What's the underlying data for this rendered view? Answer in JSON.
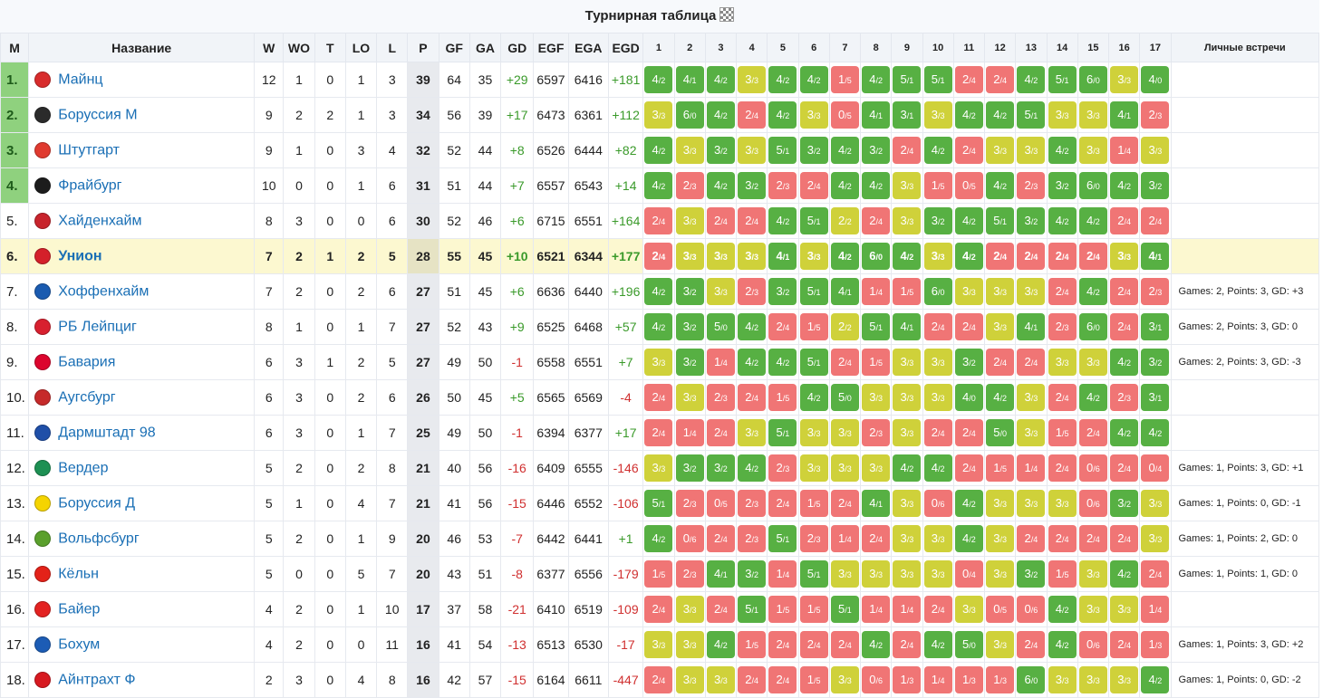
{
  "title": "Турнирная таблица",
  "headers": [
    "M",
    "Название",
    "W",
    "WO",
    "T",
    "LO",
    "L",
    "P",
    "GF",
    "GA",
    "GD",
    "EGF",
    "EGA",
    "EGD",
    "1",
    "2",
    "3",
    "4",
    "5",
    "6",
    "7",
    "8",
    "9",
    "10",
    "11",
    "12",
    "13",
    "14",
    "15",
    "16",
    "17",
    "Личные встречи"
  ],
  "colors": {
    "win": "#57b043",
    "loss": "#f07575",
    "draw": "#cfd13a",
    "qualified": "#8fd17e",
    "highlight": "#fcf8d0"
  },
  "rows": [
    {
      "pos": "1.",
      "name": "Майнц",
      "logo_color": "#d82c2c",
      "qualified": true,
      "highlight": false,
      "w": "12",
      "wo": "1",
      "t": "0",
      "lo": "1",
      "l": "3",
      "p": "39",
      "gf": "64",
      "ga": "35",
      "gd": "+29",
      "egf": "6597",
      "ega": "6416",
      "egd": "+181",
      "h2h": "",
      "m": [
        "4/2",
        "4/1",
        "4/2",
        "3/3",
        "4/2",
        "4/2",
        "1/5",
        "4/2",
        "5/1",
        "5/1",
        "2/4",
        "2/4",
        "4/2",
        "5/1",
        "6/0",
        "3/3",
        "4/0"
      ]
    },
    {
      "pos": "2.",
      "name": "Боруссия М",
      "logo_color": "#2b2b2b",
      "qualified": true,
      "highlight": false,
      "w": "9",
      "wo": "2",
      "t": "2",
      "lo": "1",
      "l": "3",
      "p": "34",
      "gf": "56",
      "ga": "39",
      "gd": "+17",
      "egf": "6473",
      "ega": "6361",
      "egd": "+112",
      "h2h": "",
      "m": [
        "3/3",
        "6/0",
        "4/2",
        "2/4",
        "4/2",
        "3/3",
        "0/5",
        "4/1",
        "3/1",
        "3/3",
        "4/2",
        "4/2",
        "5/1",
        "3/3",
        "3/3",
        "4/1",
        "2/3"
      ]
    },
    {
      "pos": "3.",
      "name": "Штутгарт",
      "logo_color": "#e03a2f",
      "qualified": true,
      "highlight": false,
      "w": "9",
      "wo": "1",
      "t": "0",
      "lo": "3",
      "l": "4",
      "p": "32",
      "gf": "52",
      "ga": "44",
      "gd": "+8",
      "egf": "6526",
      "ega": "6444",
      "egd": "+82",
      "h2h": "",
      "m": [
        "4/2",
        "3/3",
        "3/2",
        "3/3",
        "5/1",
        "3/2",
        "4/2",
        "3/2",
        "2/4",
        "4/2",
        "2/4",
        "3/3",
        "3/3",
        "4/2",
        "3/3",
        "1/4",
        "3/3"
      ]
    },
    {
      "pos": "4.",
      "name": "Фрайбург",
      "logo_color": "#1c1c1c",
      "qualified": true,
      "highlight": false,
      "w": "10",
      "wo": "0",
      "t": "0",
      "lo": "1",
      "l": "6",
      "p": "31",
      "gf": "51",
      "ga": "44",
      "gd": "+7",
      "egf": "6557",
      "ega": "6543",
      "egd": "+14",
      "h2h": "",
      "m": [
        "4/2",
        "2/3",
        "4/2",
        "3/2",
        "2/3",
        "2/4",
        "4/2",
        "4/2",
        "3/3",
        "1/5",
        "0/5",
        "4/2",
        "2/3",
        "3/2",
        "6/0",
        "4/2",
        "3/2"
      ]
    },
    {
      "pos": "5.",
      "name": "Хайденхайм",
      "logo_color": "#c8242c",
      "qualified": false,
      "highlight": false,
      "w": "8",
      "wo": "3",
      "t": "0",
      "lo": "0",
      "l": "6",
      "p": "30",
      "gf": "52",
      "ga": "46",
      "gd": "+6",
      "egf": "6715",
      "ega": "6551",
      "egd": "+164",
      "h2h": "",
      "m": [
        "2/4",
        "3/3",
        "2/4",
        "2/4",
        "4/2",
        "5/1",
        "2/2",
        "2/4",
        "3/3",
        "3/2",
        "4/2",
        "5/1",
        "3/2",
        "4/2",
        "4/2",
        "2/4",
        "2/4"
      ]
    },
    {
      "pos": "6.",
      "name": "Унион",
      "logo_color": "#d4202a",
      "qualified": false,
      "highlight": true,
      "w": "7",
      "wo": "2",
      "t": "1",
      "lo": "2",
      "l": "5",
      "p": "28",
      "gf": "55",
      "ga": "45",
      "gd": "+10",
      "egf": "6521",
      "ega": "6344",
      "egd": "+177",
      "h2h": "",
      "m": [
        "2/4",
        "3/3",
        "3/3",
        "3/3",
        "4/1",
        "3/3",
        "4/2",
        "6/0",
        "4/2",
        "3/3",
        "4/2",
        "2/4",
        "2/4",
        "2/4",
        "2/4",
        "3/3",
        "4/1"
      ]
    },
    {
      "pos": "7.",
      "name": "Хоффенхайм",
      "logo_color": "#1a5bb0",
      "qualified": false,
      "highlight": false,
      "w": "7",
      "wo": "2",
      "t": "0",
      "lo": "2",
      "l": "6",
      "p": "27",
      "gf": "51",
      "ga": "45",
      "gd": "+6",
      "egf": "6636",
      "ega": "6440",
      "egd": "+196",
      "h2h": "Games: 2, Points: 3, GD: +3",
      "m": [
        "4/2",
        "3/2",
        "3/3",
        "2/3",
        "3/2",
        "5/1",
        "4/1",
        "1/4",
        "1/5",
        "6/0",
        "3/3",
        "3/3",
        "3/3",
        "2/4",
        "4/2",
        "2/4",
        "2/3"
      ]
    },
    {
      "pos": "8.",
      "name": "РБ Лейпциг",
      "logo_color": "#d8202f",
      "qualified": false,
      "highlight": false,
      "w": "8",
      "wo": "1",
      "t": "0",
      "lo": "1",
      "l": "7",
      "p": "27",
      "gf": "52",
      "ga": "43",
      "gd": "+9",
      "egf": "6525",
      "ega": "6468",
      "egd": "+57",
      "h2h": "Games: 2, Points: 3, GD: 0",
      "m": [
        "4/2",
        "3/2",
        "5/0",
        "4/2",
        "2/4",
        "1/5",
        "2/2",
        "5/1",
        "4/1",
        "2/4",
        "2/4",
        "3/3",
        "4/1",
        "2/3",
        "6/0",
        "2/4",
        "3/1"
      ]
    },
    {
      "pos": "9.",
      "name": "Бавария",
      "logo_color": "#dc052d",
      "qualified": false,
      "highlight": false,
      "w": "6",
      "wo": "3",
      "t": "1",
      "lo": "2",
      "l": "5",
      "p": "27",
      "gf": "49",
      "ga": "50",
      "gd": "-1",
      "egf": "6558",
      "ega": "6551",
      "egd": "+7",
      "h2h": "Games: 2, Points: 3, GD: -3",
      "m": [
        "3/3",
        "3/2",
        "1/4",
        "4/2",
        "4/2",
        "5/1",
        "2/4",
        "1/5",
        "3/3",
        "3/3",
        "3/2",
        "2/4",
        "2/4",
        "3/3",
        "3/3",
        "4/2",
        "3/2"
      ]
    },
    {
      "pos": "10.",
      "name": "Аугсбург",
      "logo_color": "#c62a2a",
      "qualified": false,
      "highlight": false,
      "w": "6",
      "wo": "3",
      "t": "0",
      "lo": "2",
      "l": "6",
      "p": "26",
      "gf": "50",
      "ga": "45",
      "gd": "+5",
      "egf": "6565",
      "ega": "6569",
      "egd": "-4",
      "h2h": "",
      "m": [
        "2/4",
        "3/3",
        "2/3",
        "2/4",
        "1/5",
        "4/2",
        "5/0",
        "3/3",
        "3/3",
        "3/3",
        "4/0",
        "4/2",
        "3/3",
        "2/4",
        "4/2",
        "2/3",
        "3/1"
      ]
    },
    {
      "pos": "11.",
      "name": "Дармштадт 98",
      "logo_color": "#1f4fa8",
      "qualified": false,
      "highlight": false,
      "w": "6",
      "wo": "3",
      "t": "0",
      "lo": "1",
      "l": "7",
      "p": "25",
      "gf": "49",
      "ga": "50",
      "gd": "-1",
      "egf": "6394",
      "ega": "6377",
      "egd": "+17",
      "h2h": "",
      "m": [
        "2/4",
        "1/4",
        "2/4",
        "3/3",
        "5/1",
        "3/3",
        "3/3",
        "2/3",
        "3/3",
        "2/4",
        "2/4",
        "5/0",
        "3/3",
        "1/5",
        "2/4",
        "4/2",
        "4/2"
      ]
    },
    {
      "pos": "12.",
      "name": "Вердер",
      "logo_color": "#1d9053",
      "qualified": false,
      "highlight": false,
      "w": "5",
      "wo": "2",
      "t": "0",
      "lo": "2",
      "l": "8",
      "p": "21",
      "gf": "40",
      "ga": "56",
      "gd": "-16",
      "egf": "6409",
      "ega": "6555",
      "egd": "-146",
      "h2h": "Games: 1, Points: 3, GD: +1",
      "m": [
        "3/3",
        "3/2",
        "3/2",
        "4/2",
        "2/3",
        "3/3",
        "3/3",
        "3/3",
        "4/2",
        "4/2",
        "2/4",
        "1/5",
        "1/4",
        "2/4",
        "0/6",
        "2/4",
        "0/4"
      ]
    },
    {
      "pos": "13.",
      "name": "Боруссия Д",
      "logo_color": "#f5d400",
      "qualified": false,
      "highlight": false,
      "w": "5",
      "wo": "1",
      "t": "0",
      "lo": "4",
      "l": "7",
      "p": "21",
      "gf": "41",
      "ga": "56",
      "gd": "-15",
      "egf": "6446",
      "ega": "6552",
      "egd": "-106",
      "h2h": "Games: 1, Points: 0, GD: -1",
      "m": [
        "5/1",
        "2/3",
        "0/5",
        "2/3",
        "2/4",
        "1/5",
        "2/4",
        "4/1",
        "3/3",
        "0/6",
        "4/2",
        "3/3",
        "3/3",
        "3/3",
        "0/6",
        "3/2",
        "3/3"
      ]
    },
    {
      "pos": "14.",
      "name": "Вольфсбург",
      "logo_color": "#5aa02c",
      "qualified": false,
      "highlight": false,
      "w": "5",
      "wo": "2",
      "t": "0",
      "lo": "1",
      "l": "9",
      "p": "20",
      "gf": "46",
      "ga": "53",
      "gd": "-7",
      "egf": "6442",
      "ega": "6441",
      "egd": "+1",
      "h2h": "Games: 1, Points: 2, GD: 0",
      "m": [
        "4/2",
        "0/6",
        "2/4",
        "2/3",
        "5/1",
        "2/3",
        "1/4",
        "2/4",
        "3/3",
        "3/3",
        "4/2",
        "3/3",
        "2/4",
        "2/4",
        "2/4",
        "2/4",
        "3/3"
      ]
    },
    {
      "pos": "15.",
      "name": "Кёльн",
      "logo_color": "#e32219",
      "qualified": false,
      "highlight": false,
      "w": "5",
      "wo": "0",
      "t": "0",
      "lo": "5",
      "l": "7",
      "p": "20",
      "gf": "43",
      "ga": "51",
      "gd": "-8",
      "egf": "6377",
      "ega": "6556",
      "egd": "-179",
      "h2h": "Games: 1, Points: 1, GD: 0",
      "m": [
        "1/5",
        "2/3",
        "4/1",
        "3/2",
        "1/4",
        "5/1",
        "3/3",
        "3/3",
        "3/3",
        "3/3",
        "0/4",
        "3/3",
        "3/2",
        "1/5",
        "3/3",
        "4/2",
        "2/4"
      ]
    },
    {
      "pos": "16.",
      "name": "Байер",
      "logo_color": "#e32221",
      "qualified": false,
      "highlight": false,
      "w": "4",
      "wo": "2",
      "t": "0",
      "lo": "1",
      "l": "10",
      "p": "17",
      "gf": "37",
      "ga": "58",
      "gd": "-21",
      "egf": "6410",
      "ega": "6519",
      "egd": "-109",
      "h2h": "",
      "m": [
        "2/4",
        "3/3",
        "2/4",
        "5/1",
        "1/5",
        "1/5",
        "5/1",
        "1/4",
        "1/4",
        "2/4",
        "3/3",
        "0/5",
        "0/6",
        "4/2",
        "3/3",
        "3/3",
        "1/4"
      ]
    },
    {
      "pos": "17.",
      "name": "Бохум",
      "logo_color": "#1c5cb5",
      "qualified": false,
      "highlight": false,
      "w": "4",
      "wo": "2",
      "t": "0",
      "lo": "0",
      "l": "11",
      "p": "16",
      "gf": "41",
      "ga": "54",
      "gd": "-13",
      "egf": "6513",
      "ega": "6530",
      "egd": "-17",
      "h2h": "Games: 1, Points: 3, GD: +2",
      "m": [
        "3/3",
        "3/3",
        "4/2",
        "1/5",
        "2/4",
        "2/4",
        "2/4",
        "4/2",
        "2/4",
        "4/2",
        "5/0",
        "3/3",
        "2/4",
        "4/2",
        "0/6",
        "2/4",
        "1/3"
      ]
    },
    {
      "pos": "18.",
      "name": "Айнтрахт Ф",
      "logo_color": "#d71920",
      "qualified": false,
      "highlight": false,
      "w": "2",
      "wo": "3",
      "t": "0",
      "lo": "4",
      "l": "8",
      "p": "16",
      "gf": "42",
      "ga": "57",
      "gd": "-15",
      "egf": "6164",
      "ega": "6611",
      "egd": "-447",
      "h2h": "Games: 1, Points: 0, GD: -2",
      "m": [
        "2/4",
        "3/3",
        "3/3",
        "2/4",
        "2/4",
        "1/5",
        "3/3",
        "0/6",
        "1/3",
        "1/4",
        "1/3",
        "1/3",
        "6/0",
        "3/3",
        "3/3",
        "3/3",
        "4/2"
      ]
    }
  ]
}
